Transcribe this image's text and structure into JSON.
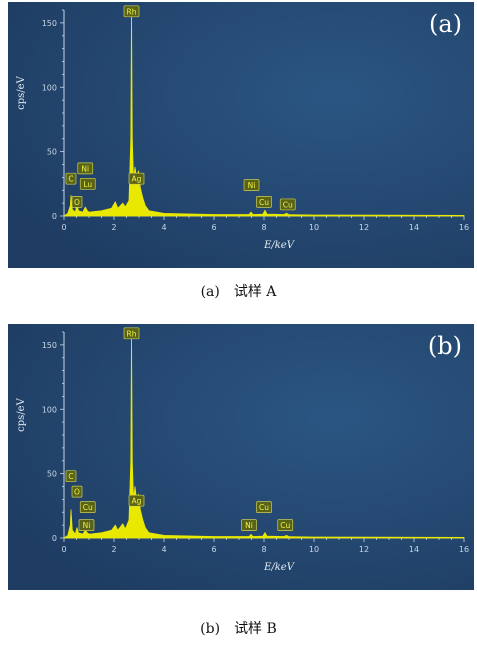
{
  "panels": [
    {
      "key": "a",
      "tag": "(a)",
      "caption_label": "(a)",
      "caption_text": "试样 A"
    },
    {
      "key": "b",
      "tag": "(b)",
      "caption_label": "(b)",
      "caption_text": "试样 B"
    }
  ],
  "colors": {
    "background_outer": "#1f3d63",
    "background_inner": "#2b5683",
    "spectrum": "#e8e800",
    "axis": "#c8d6e6",
    "peak_label_fill": "#5a6418",
    "peak_label_border": "#cccc55",
    "peak_label_text": "#f2f240"
  },
  "chart_data": [
    {
      "type": "area",
      "panel": "a",
      "ylabel": "cps/eV",
      "xlabel": "E/keV",
      "xlim": [
        0,
        16
      ],
      "ylim": [
        0,
        160
      ],
      "x_ticks": [
        0,
        2,
        4,
        6,
        8,
        10,
        12,
        14,
        16
      ],
      "y_ticks": [
        0,
        50,
        100,
        150
      ],
      "grid": false,
      "spectrum": [
        [
          0.0,
          0
        ],
        [
          0.15,
          2
        ],
        [
          0.25,
          8
        ],
        [
          0.28,
          16
        ],
        [
          0.33,
          5
        ],
        [
          0.45,
          3
        ],
        [
          0.52,
          9
        ],
        [
          0.58,
          4
        ],
        [
          0.75,
          3
        ],
        [
          0.85,
          7
        ],
        [
          0.93,
          4
        ],
        [
          1.0,
          3
        ],
        [
          1.5,
          4
        ],
        [
          1.9,
          6
        ],
        [
          2.05,
          11
        ],
        [
          2.15,
          6
        ],
        [
          2.35,
          10
        ],
        [
          2.45,
          7
        ],
        [
          2.6,
          12
        ],
        [
          2.67,
          60
        ],
        [
          2.7,
          160
        ],
        [
          2.73,
          60
        ],
        [
          2.78,
          28
        ],
        [
          2.84,
          38
        ],
        [
          2.9,
          30
        ],
        [
          2.98,
          35
        ],
        [
          3.05,
          22
        ],
        [
          3.15,
          14
        ],
        [
          3.25,
          8
        ],
        [
          3.4,
          4
        ],
        [
          4.0,
          2
        ],
        [
          6.0,
          1.2
        ],
        [
          7.4,
          1.2
        ],
        [
          7.48,
          3
        ],
        [
          7.56,
          1.2
        ],
        [
          7.95,
          1.4
        ],
        [
          8.04,
          4.5
        ],
        [
          8.12,
          1.4
        ],
        [
          8.8,
          1.2
        ],
        [
          8.9,
          2.2
        ],
        [
          9.0,
          1
        ],
        [
          10.0,
          0.8
        ],
        [
          16.0,
          0.5
        ]
      ],
      "peak_labels": [
        {
          "text": "Rh",
          "x": 2.7,
          "y": 159
        },
        {
          "text": "C",
          "x": 0.28,
          "y": 29
        },
        {
          "text": "Ni",
          "x": 0.85,
          "y": 37
        },
        {
          "text": "Lu",
          "x": 0.95,
          "y": 25
        },
        {
          "text": "O",
          "x": 0.52,
          "y": 11
        },
        {
          "text": "Ag",
          "x": 2.9,
          "y": 29
        },
        {
          "text": "Ni",
          "x": 7.5,
          "y": 24
        },
        {
          "text": "Cu",
          "x": 8.0,
          "y": 11
        },
        {
          "text": "Cu",
          "x": 8.95,
          "y": 9
        }
      ]
    },
    {
      "type": "area",
      "panel": "b",
      "ylabel": "cps/eV",
      "xlabel": "E/keV",
      "xlim": [
        0,
        16
      ],
      "ylim": [
        0,
        160
      ],
      "x_ticks": [
        0,
        2,
        4,
        6,
        8,
        10,
        12,
        14,
        16
      ],
      "y_ticks": [
        0,
        50,
        100,
        150
      ],
      "grid": false,
      "spectrum": [
        [
          0.0,
          0
        ],
        [
          0.15,
          2
        ],
        [
          0.25,
          10
        ],
        [
          0.28,
          22
        ],
        [
          0.33,
          6
        ],
        [
          0.45,
          3
        ],
        [
          0.52,
          8
        ],
        [
          0.58,
          4
        ],
        [
          0.75,
          3
        ],
        [
          0.85,
          6
        ],
        [
          0.93,
          4
        ],
        [
          1.0,
          3
        ],
        [
          1.5,
          4
        ],
        [
          1.9,
          6
        ],
        [
          2.05,
          10
        ],
        [
          2.15,
          6
        ],
        [
          2.35,
          11
        ],
        [
          2.45,
          7
        ],
        [
          2.6,
          14
        ],
        [
          2.67,
          60
        ],
        [
          2.7,
          160
        ],
        [
          2.73,
          60
        ],
        [
          2.78,
          30
        ],
        [
          2.84,
          40
        ],
        [
          2.9,
          30
        ],
        [
          2.98,
          34
        ],
        [
          3.05,
          22
        ],
        [
          3.15,
          14
        ],
        [
          3.25,
          8
        ],
        [
          3.4,
          4
        ],
        [
          4.0,
          2
        ],
        [
          6.0,
          1.2
        ],
        [
          7.4,
          1.2
        ],
        [
          7.48,
          2.8
        ],
        [
          7.56,
          1.2
        ],
        [
          7.95,
          1.4
        ],
        [
          8.04,
          4.2
        ],
        [
          8.12,
          1.4
        ],
        [
          8.8,
          1.2
        ],
        [
          8.9,
          2
        ],
        [
          9.0,
          1
        ],
        [
          10.0,
          0.8
        ],
        [
          16.0,
          0.5
        ]
      ],
      "peak_labels": [
        {
          "text": "Rh",
          "x": 2.7,
          "y": 159
        },
        {
          "text": "C",
          "x": 0.28,
          "y": 48
        },
        {
          "text": "O",
          "x": 0.52,
          "y": 36
        },
        {
          "text": "Cu",
          "x": 0.95,
          "y": 24
        },
        {
          "text": "Ni",
          "x": 0.9,
          "y": 10
        },
        {
          "text": "Ag",
          "x": 2.9,
          "y": 29
        },
        {
          "text": "Ni",
          "x": 7.4,
          "y": 10
        },
        {
          "text": "Cu",
          "x": 8.0,
          "y": 24
        },
        {
          "text": "Cu",
          "x": 8.85,
          "y": 10
        }
      ]
    }
  ]
}
